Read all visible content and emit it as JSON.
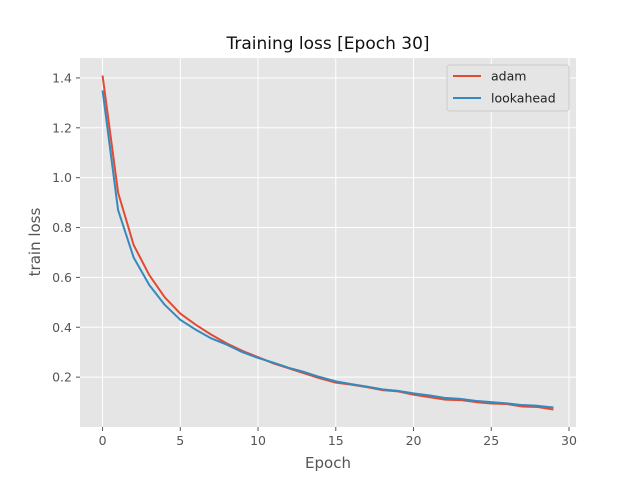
{
  "chart_data": {
    "type": "line",
    "title": "Training loss [Epoch 30]",
    "xlabel": "Epoch",
    "ylabel": "train loss",
    "xlim": [
      -1.45,
      30.45
    ],
    "ylim": [
      0.0,
      1.48
    ],
    "xticks": [
      "0",
      "5",
      "10",
      "15",
      "20",
      "25",
      "30"
    ],
    "yticks": [
      "0.2",
      "0.4",
      "0.6",
      "0.8",
      "1.0",
      "1.2",
      "1.4"
    ],
    "grid": true,
    "legend_position": "top-right",
    "x": [
      0,
      1,
      2,
      3,
      4,
      5,
      6,
      7,
      8,
      9,
      10,
      11,
      12,
      13,
      14,
      15,
      16,
      17,
      18,
      19,
      20,
      21,
      22,
      23,
      24,
      25,
      26,
      27,
      28,
      29
    ],
    "series": [
      {
        "name": "adam",
        "color": "#E24A33",
        "values": [
          1.41,
          0.94,
          0.73,
          0.61,
          0.52,
          0.455,
          0.41,
          0.37,
          0.335,
          0.305,
          0.28,
          0.255,
          0.235,
          0.215,
          0.195,
          0.178,
          0.17,
          0.16,
          0.148,
          0.143,
          0.13,
          0.12,
          0.11,
          0.108,
          0.1,
          0.094,
          0.092,
          0.082,
          0.08,
          0.07
        ]
      },
      {
        "name": "lookahead",
        "color": "#348ABD",
        "values": [
          1.35,
          0.87,
          0.68,
          0.57,
          0.49,
          0.43,
          0.39,
          0.355,
          0.33,
          0.3,
          0.277,
          0.258,
          0.237,
          0.22,
          0.2,
          0.183,
          0.172,
          0.162,
          0.151,
          0.145,
          0.135,
          0.127,
          0.117,
          0.113,
          0.105,
          0.1,
          0.095,
          0.088,
          0.085,
          0.078
        ]
      }
    ]
  }
}
